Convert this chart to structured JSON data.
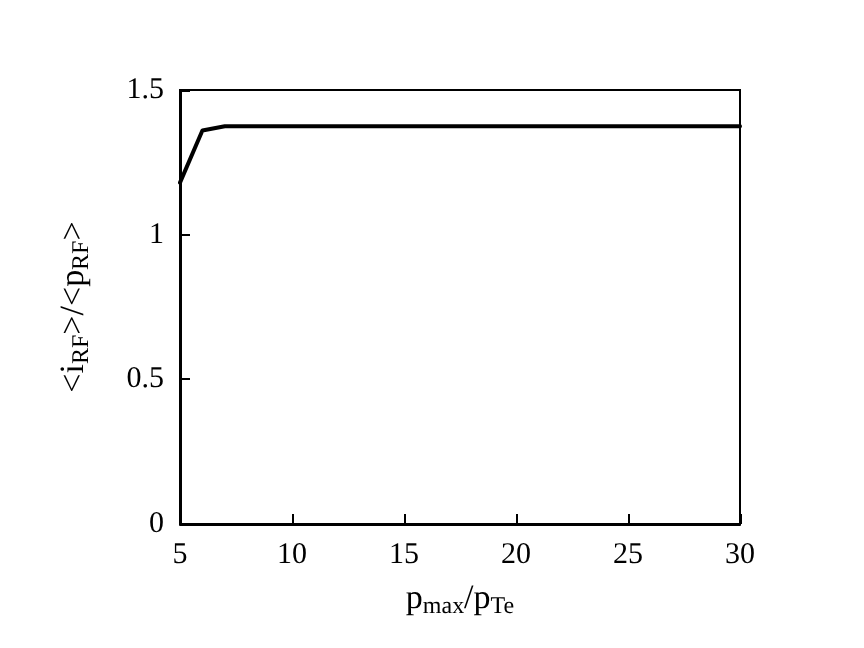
{
  "chart_data": {
    "type": "line",
    "xlabel": "p$_{max}$/p$_{Te}$",
    "ylabel": "<i$_{RF}$>/<p$_{RF}$>",
    "x": [
      5,
      6,
      7,
      8,
      10,
      15,
      20,
      25,
      30
    ],
    "series": [
      {
        "color": "#000000",
        "values": [
          1.18,
          1.36,
          1.375,
          1.375,
          1.375,
          1.375,
          1.375,
          1.375,
          1.375
        ]
      }
    ],
    "xlim": [
      5,
      30
    ],
    "xticks": [
      5,
      10,
      15,
      20,
      25,
      30
    ],
    "ylim": [
      0,
      1.5
    ],
    "yticks": [
      0,
      0.5,
      1,
      1.5
    ],
    "grid": false,
    "marker": "none",
    "line_style": "solid"
  }
}
